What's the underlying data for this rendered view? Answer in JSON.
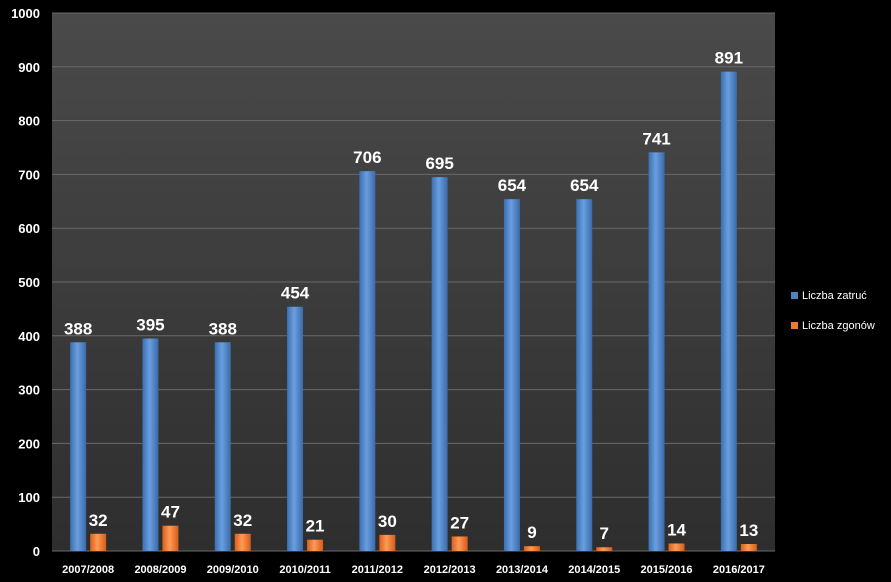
{
  "chart_data": {
    "type": "bar",
    "categories": [
      "2007/2008",
      "2008/2009",
      "2009/2010",
      "2010/2011",
      "2011/2012",
      "2012/2013",
      "2013/2014",
      "2014/2015",
      "2015/2016",
      "2016/2017"
    ],
    "series": [
      {
        "name": "Liczba zatruć",
        "values": [
          388,
          395,
          388,
          454,
          706,
          695,
          654,
          654,
          741,
          891
        ],
        "color": "#4f81bd"
      },
      {
        "name": "Liczba zgonów",
        "values": [
          32,
          47,
          32,
          21,
          30,
          27,
          9,
          7,
          14,
          13
        ],
        "color": "#f07a2e"
      }
    ],
    "ylim": [
      0,
      1000
    ],
    "yticks": [
      "0",
      "100",
      "200",
      "300",
      "400",
      "500",
      "600",
      "700",
      "800",
      "900",
      "1000"
    ],
    "grid": true,
    "legend": "right",
    "background": "#3a3a3a",
    "title": "",
    "xlabel": "",
    "ylabel": ""
  }
}
